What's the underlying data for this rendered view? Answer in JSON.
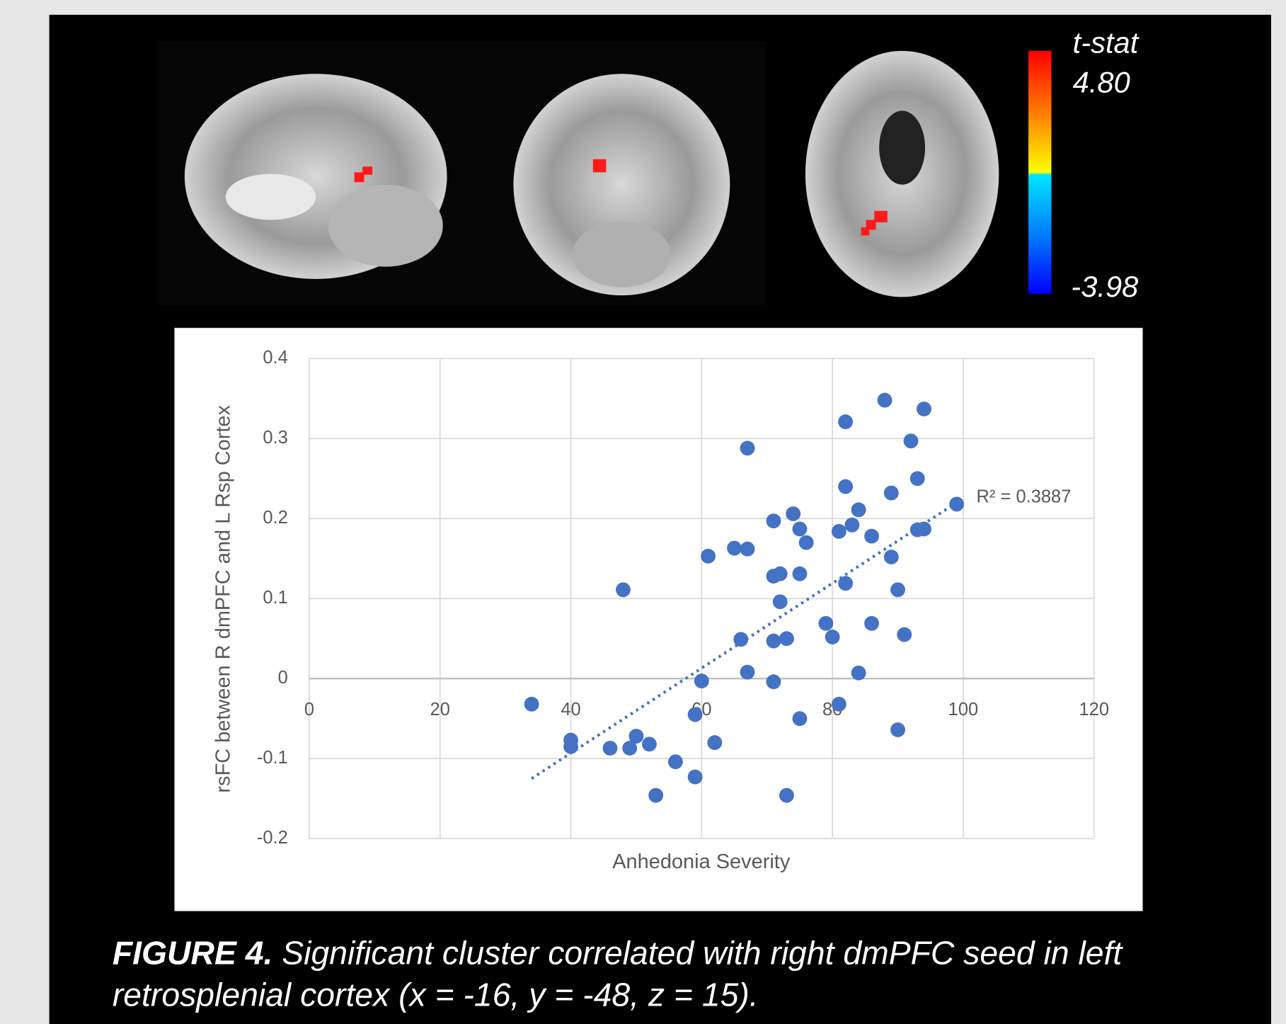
{
  "colorbar": {
    "title": "t-stat",
    "max_label": "4.80",
    "min_label": "-3.98"
  },
  "chart_data": {
    "type": "scatter",
    "xlabel": "Anhedonia Severity",
    "ylabel": "rsFC between R dmPFC and L Rsp Cortex",
    "color": "#4472c4",
    "x": [
      34,
      40,
      40,
      46,
      49,
      50,
      52,
      48,
      53,
      56,
      59,
      59,
      60,
      61,
      62,
      65,
      67,
      67,
      66,
      67,
      71,
      71,
      72,
      72,
      71,
      71,
      73,
      73,
      74,
      75,
      75,
      76,
      75,
      79,
      80,
      81,
      81,
      82,
      82,
      82,
      83,
      84,
      84,
      86,
      86,
      88,
      89,
      89,
      90,
      90,
      91,
      92,
      93,
      93,
      94,
      94,
      99
    ],
    "values": [
      -0.032,
      -0.077,
      -0.085,
      -0.087,
      -0.087,
      -0.072,
      -0.082,
      0.111,
      -0.146,
      -0.104,
      -0.123,
      -0.045,
      -0.003,
      0.153,
      -0.08,
      0.163,
      0.162,
      0.288,
      0.049,
      0.008,
      0.197,
      0.128,
      0.131,
      0.096,
      0.047,
      -0.004,
      0.05,
      -0.146,
      0.206,
      0.187,
      0.131,
      0.17,
      -0.05,
      0.069,
      0.052,
      0.184,
      -0.032,
      0.321,
      0.24,
      0.119,
      0.192,
      0.211,
      0.007,
      0.178,
      0.069,
      0.348,
      0.232,
      0.152,
      0.111,
      -0.064,
      0.055,
      0.297,
      0.25,
      0.186,
      0.337,
      0.187,
      0.218
    ],
    "trendline": {
      "x": [
        34,
        99
      ],
      "y": [
        -0.125,
        0.22
      ],
      "label": "R² = 0.3887"
    },
    "xlim": [
      0,
      120
    ],
    "xticks": [
      0,
      20,
      40,
      60,
      80,
      100,
      120
    ],
    "ylim": [
      -0.2,
      0.4
    ],
    "yticks": [
      -0.2,
      -0.1,
      0,
      0.1,
      0.2,
      0.3,
      0.4
    ],
    "grid": true
  },
  "caption": {
    "label": "FIGURE 4.",
    "lines": [
      "Significant cluster correlated with right dmPFC seed in left",
      "retrosplenial cortex (x = -16, y = -48, z = 15)."
    ]
  }
}
